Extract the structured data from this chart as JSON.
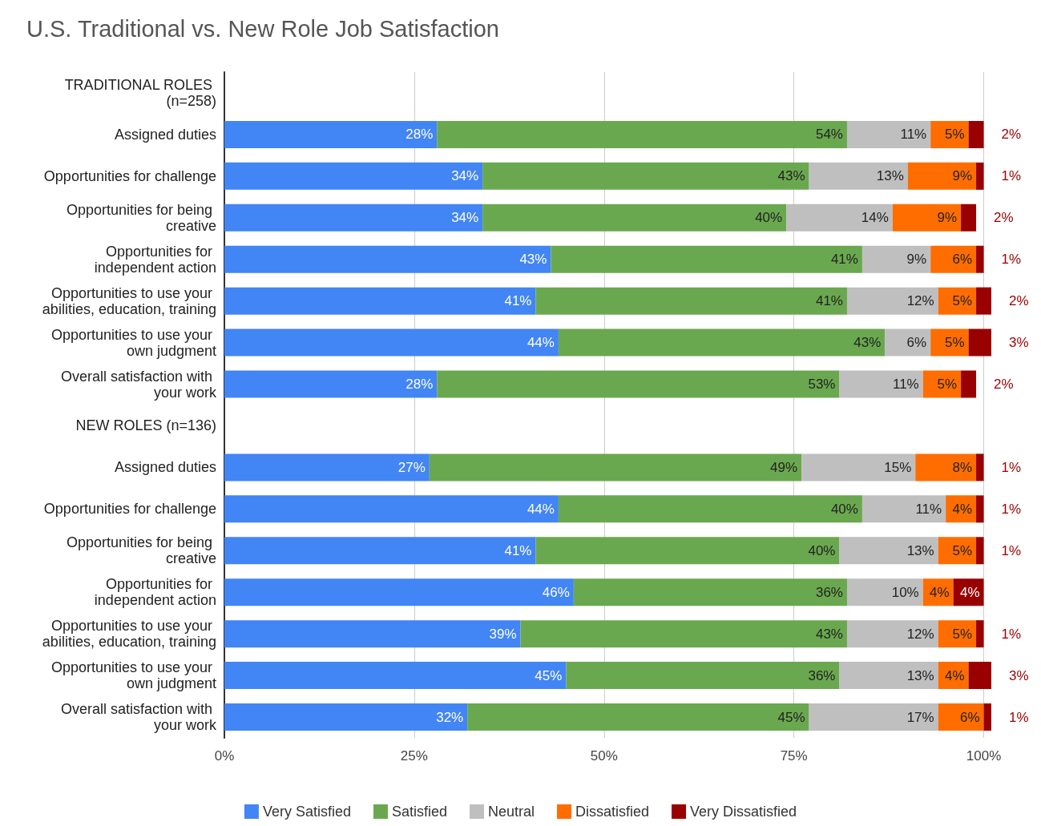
{
  "chart_data": {
    "type": "bar",
    "orientation": "horizontal",
    "stacked": true,
    "title": "U.S. Traditional vs. New Role Job Satisfaction",
    "categories": [
      "TRADITIONAL ROLES (n=258)",
      "Assigned duties",
      "Opportunities for challenge",
      "Opportunities for being creative",
      "Opportunities for independent action",
      "Opportunities to use your abilities, education, training",
      "Opportunities to use your own judgment",
      "Overall satisfaction with your work",
      "NEW ROLES (n=136)",
      "Assigned duties",
      "Opportunities for challenge",
      "Opportunities for being creative",
      "Opportunities for independent action",
      "Opportunities to use your abilities, education, training",
      "Opportunities to use your own judgment",
      "Overall satisfaction with your work"
    ],
    "series": [
      {
        "name": "Very Satisfied",
        "color": "#4285f4",
        "values": [
          null,
          28,
          34,
          34,
          43,
          41,
          44,
          28,
          null,
          27,
          44,
          41,
          46,
          39,
          45,
          32
        ],
        "value_labels": [
          null,
          "28%",
          "34%",
          "34%",
          "43%",
          "41%",
          "44%",
          "28%",
          null,
          "27%",
          "44%",
          "41%",
          "46%",
          "39%",
          "45%",
          "32%"
        ]
      },
      {
        "name": "Satisfied",
        "color": "#6aa84f",
        "values": [
          null,
          54,
          43,
          40,
          41,
          41,
          43,
          53,
          null,
          49,
          40,
          40,
          36,
          43,
          36,
          45
        ],
        "value_labels": [
          null,
          "54%",
          "43%",
          "40%",
          "41%",
          "41%",
          "43%",
          "53%",
          null,
          "49%",
          "40%",
          "40%",
          "36%",
          "43%",
          "36%",
          "45%"
        ]
      },
      {
        "name": "Neutral",
        "color": "#bfbfbf",
        "values": [
          null,
          11,
          13,
          14,
          9,
          12,
          6,
          11,
          null,
          15,
          11,
          13,
          10,
          12,
          13,
          17
        ],
        "value_labels": [
          null,
          "11%",
          "13%",
          "14%",
          "9%",
          "12%",
          "6%",
          "11%",
          null,
          "15%",
          "11%",
          "13%",
          "10%",
          "12%",
          "13%",
          "17%"
        ]
      },
      {
        "name": "Dissatisfied",
        "color": "#ff6d01",
        "values": [
          null,
          5,
          9,
          9,
          6,
          5,
          5,
          5,
          null,
          8,
          4,
          5,
          4,
          5,
          4,
          6
        ],
        "value_labels": [
          null,
          "5%",
          "9%",
          "9%",
          "6%",
          "5%",
          "5%",
          "5%",
          null,
          "8%",
          "4%",
          "5%",
          "4%",
          "5%",
          "4%",
          "6%"
        ]
      },
      {
        "name": "Very Dissatisfied",
        "color": "#990000",
        "values": [
          null,
          2,
          1,
          2,
          1,
          2,
          3,
          2,
          null,
          1,
          1,
          1,
          4,
          1,
          3,
          1
        ],
        "value_labels": [
          null,
          "2%",
          "1%",
          "2%",
          "1%",
          "2%",
          "3%",
          "2%",
          null,
          "1%",
          "1%",
          "1%",
          "4%",
          "1%",
          "3%",
          "1%"
        ]
      }
    ],
    "xlim": [
      0,
      101
    ],
    "xticks": [
      {
        "value": 0,
        "label": "0%"
      },
      {
        "value": 25,
        "label": "25%"
      },
      {
        "value": 50,
        "label": "50%"
      },
      {
        "value": 75,
        "label": "75%"
      },
      {
        "value": 100,
        "label": "100%"
      }
    ],
    "grid": "x",
    "legend": "bottom"
  }
}
